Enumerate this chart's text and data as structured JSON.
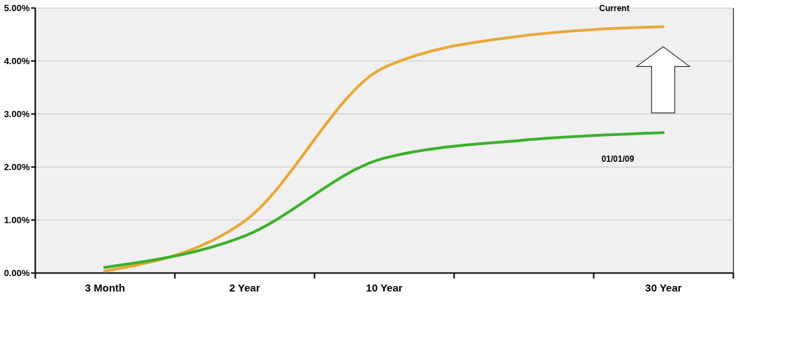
{
  "chart_data": {
    "type": "line",
    "categories": [
      "3 Month",
      "2 Year",
      "10 Year",
      null,
      "30 Year"
    ],
    "series": [
      {
        "name": "Current",
        "color": "#e8a838",
        "values": [
          0.03,
          0.97,
          3.87,
          4.47,
          4.64
        ]
      },
      {
        "name": "01/01/09",
        "color": "#3cb02c",
        "values": [
          0.1,
          0.69,
          2.16,
          2.5,
          2.64
        ]
      }
    ],
    "ylim": [
      0,
      5
    ],
    "yticks": [
      {
        "value": 0,
        "label": "0.00%"
      },
      {
        "value": 1,
        "label": "1.00%"
      },
      {
        "value": 2,
        "label": "2.00%"
      },
      {
        "value": 3,
        "label": "3.00%"
      },
      {
        "value": 4,
        "label": "4.00%"
      },
      {
        "value": 5,
        "label": "5.00%"
      }
    ],
    "grid": "y",
    "legend": false,
    "marker": "none",
    "line_style": "solid"
  }
}
